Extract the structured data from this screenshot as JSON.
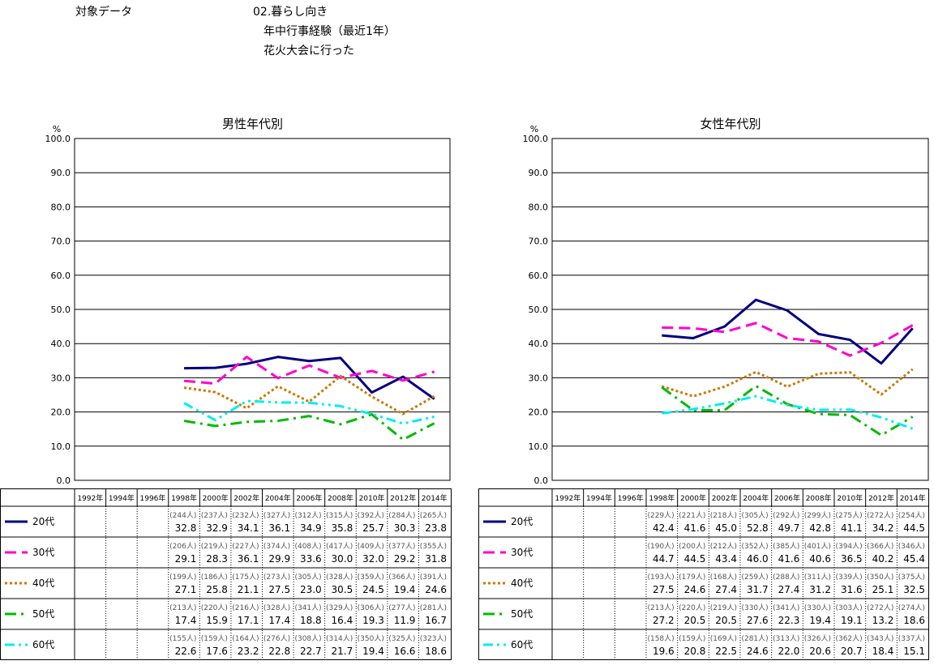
{
  "header": {
    "label": "対象データ",
    "lines": [
      "02.暮らし向き",
      "年中行事経験（最近1年）",
      "花火大会に行った"
    ]
  },
  "chart_data": [
    {
      "type": "line",
      "title": "男性年代別",
      "y_unit": "%",
      "ylim": [
        0,
        100
      ],
      "yticks": [
        "0.0",
        "10.0",
        "20.0",
        "30.0",
        "40.0",
        "50.0",
        "60.0",
        "70.0",
        "80.0",
        "90.0",
        "100.0"
      ],
      "categories": [
        "1992年",
        "1994年",
        "1996年",
        "1998年",
        "2000年",
        "2002年",
        "2004年",
        "2006年",
        "2008年",
        "2010年",
        "2012年",
        "2014年"
      ],
      "series": [
        {
          "name": "20代",
          "color": "#000080",
          "dash": "solid",
          "counts": [
            null,
            null,
            null,
            "(244人)",
            "(237人)",
            "(232人)",
            "(327人)",
            "(312人)",
            "(315人)",
            "(392人)",
            "(284人)",
            "(265人)"
          ],
          "values": [
            null,
            null,
            null,
            32.8,
            32.9,
            34.1,
            36.1,
            34.9,
            35.8,
            25.7,
            30.3,
            23.8
          ]
        },
        {
          "name": "30代",
          "color": "#FF00CC",
          "dash": "dash",
          "counts": [
            null,
            null,
            null,
            "(206人)",
            "(219人)",
            "(227人)",
            "(374人)",
            "(408人)",
            "(417人)",
            "(409人)",
            "(377人)",
            "(355人)"
          ],
          "values": [
            null,
            null,
            null,
            29.1,
            28.3,
            36.1,
            29.9,
            33.6,
            30.0,
            32.0,
            29.2,
            31.8
          ]
        },
        {
          "name": "40代",
          "color": "#CC7700",
          "dash": "dot",
          "counts": [
            null,
            null,
            null,
            "(199人)",
            "(186人)",
            "(175人)",
            "(273人)",
            "(305人)",
            "(328人)",
            "(359人)",
            "(366人)",
            "(391人)"
          ],
          "values": [
            null,
            null,
            null,
            27.1,
            25.8,
            21.1,
            27.5,
            23.0,
            30.5,
            24.5,
            19.4,
            24.6
          ]
        },
        {
          "name": "50代",
          "color": "#00BB00",
          "dash": "dashdot",
          "counts": [
            null,
            null,
            null,
            "(213人)",
            "(220人)",
            "(216人)",
            "(328人)",
            "(341人)",
            "(329人)",
            "(306人)",
            "(277人)",
            "(281人)"
          ],
          "values": [
            null,
            null,
            null,
            17.4,
            15.9,
            17.1,
            17.4,
            18.8,
            16.4,
            19.3,
            11.9,
            16.7
          ]
        },
        {
          "name": "60代",
          "color": "#00EEEE",
          "dash": "dashdotdot",
          "counts": [
            null,
            null,
            null,
            "(155人)",
            "(159人)",
            "(164人)",
            "(276人)",
            "(308人)",
            "(314人)",
            "(350人)",
            "(325人)",
            "(323人)"
          ],
          "values": [
            null,
            null,
            null,
            22.6,
            17.6,
            23.2,
            22.8,
            22.7,
            21.7,
            19.4,
            16.6,
            18.6
          ]
        }
      ]
    },
    {
      "type": "line",
      "title": "女性年代別",
      "y_unit": "%",
      "ylim": [
        0,
        100
      ],
      "yticks": [
        "0.0",
        "10.0",
        "20.0",
        "30.0",
        "40.0",
        "50.0",
        "60.0",
        "70.0",
        "80.0",
        "90.0",
        "100.0"
      ],
      "categories": [
        "1992年",
        "1994年",
        "1996年",
        "1998年",
        "2000年",
        "2002年",
        "2004年",
        "2006年",
        "2008年",
        "2010年",
        "2012年",
        "2014年"
      ],
      "series": [
        {
          "name": "20代",
          "color": "#000080",
          "dash": "solid",
          "counts": [
            null,
            null,
            null,
            "(229人)",
            "(221人)",
            "(218人)",
            "(305人)",
            "(292人)",
            "(299人)",
            "(275人)",
            "(272人)",
            "(254人)"
          ],
          "values": [
            null,
            null,
            null,
            42.4,
            41.6,
            45.0,
            52.8,
            49.7,
            42.8,
            41.1,
            34.2,
            44.5
          ]
        },
        {
          "name": "30代",
          "color": "#FF00CC",
          "dash": "dash",
          "counts": [
            null,
            null,
            null,
            "(190人)",
            "(200人)",
            "(212人)",
            "(352人)",
            "(385人)",
            "(401人)",
            "(394人)",
            "(366人)",
            "(346人)"
          ],
          "values": [
            null,
            null,
            null,
            44.7,
            44.5,
            43.4,
            46.0,
            41.6,
            40.6,
            36.5,
            40.2,
            45.4
          ]
        },
        {
          "name": "40代",
          "color": "#CC7700",
          "dash": "dot",
          "counts": [
            null,
            null,
            null,
            "(193人)",
            "(179人)",
            "(168人)",
            "(259人)",
            "(288人)",
            "(311人)",
            "(339人)",
            "(350人)",
            "(375人)"
          ],
          "values": [
            null,
            null,
            null,
            27.5,
            24.6,
            27.4,
            31.7,
            27.4,
            31.2,
            31.6,
            25.1,
            32.5
          ]
        },
        {
          "name": "50代",
          "color": "#00BB00",
          "dash": "dashdot",
          "counts": [
            null,
            null,
            null,
            "(213人)",
            "(220人)",
            "(219人)",
            "(330人)",
            "(341人)",
            "(330人)",
            "(303人)",
            "(272人)",
            "(274人)"
          ],
          "values": [
            null,
            null,
            null,
            27.2,
            20.5,
            20.5,
            27.6,
            22.3,
            19.4,
            19.1,
            13.2,
            18.6
          ]
        },
        {
          "name": "60代",
          "color": "#00EEEE",
          "dash": "dashdotdot",
          "counts": [
            null,
            null,
            null,
            "(158人)",
            "(159人)",
            "(169人)",
            "(281人)",
            "(313人)",
            "(326人)",
            "(362人)",
            "(343人)",
            "(337人)"
          ],
          "values": [
            null,
            null,
            null,
            19.6,
            20.8,
            22.5,
            24.6,
            22.0,
            20.6,
            20.7,
            18.4,
            15.1
          ]
        }
      ]
    }
  ]
}
